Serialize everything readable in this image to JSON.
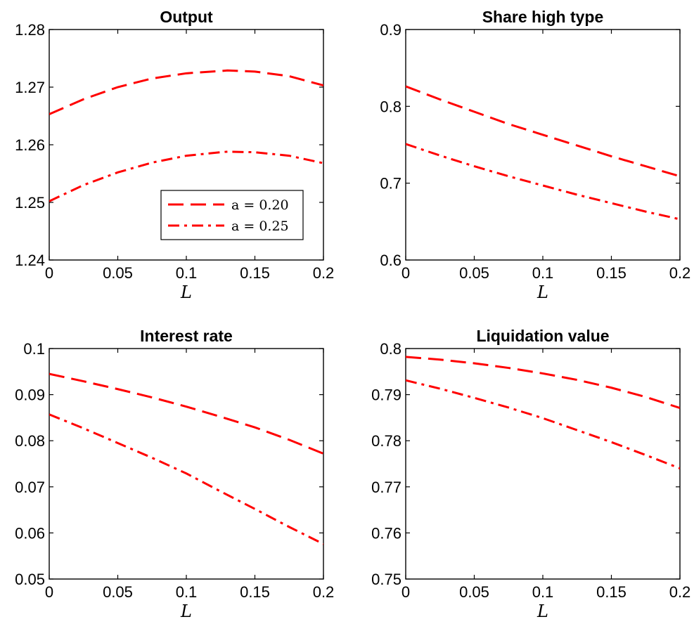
{
  "chart_data": [
    {
      "type": "line",
      "title": "Output",
      "xlabel": "L",
      "ylabel": "",
      "xlim": [
        0,
        0.2
      ],
      "ylim": [
        1.24,
        1.28
      ],
      "xticks": [
        "0",
        "0.05",
        "0.1",
        "0.15",
        "0.2"
      ],
      "yticks": [
        "1.24",
        "1.25",
        "1.26",
        "1.27",
        "1.28"
      ],
      "x": [
        0,
        0.025,
        0.05,
        0.075,
        0.1,
        0.125,
        0.13,
        0.15,
        0.175,
        0.2
      ],
      "series": [
        {
          "name": "a = 0.20",
          "style": "dashed",
          "values": [
            1.2653,
            1.2679,
            1.27,
            1.2715,
            1.2724,
            1.2728,
            1.2729,
            1.2727,
            1.2719,
            1.2703
          ]
        },
        {
          "name": "a = 0.25",
          "style": "dashdot",
          "values": [
            1.2502,
            1.253,
            1.2552,
            1.2569,
            1.2581,
            1.2587,
            1.2588,
            1.2587,
            1.2581,
            1.2568
          ]
        }
      ],
      "legend": {
        "position": "lower-right",
        "entries": [
          "a = 0.20",
          "a = 0.25"
        ]
      }
    },
    {
      "type": "line",
      "title": "Share high type",
      "xlabel": "L",
      "ylabel": "",
      "xlim": [
        0,
        0.2
      ],
      "ylim": [
        0.6,
        0.9
      ],
      "xticks": [
        "0",
        "0.05",
        "0.1",
        "0.15",
        "0.2"
      ],
      "yticks": [
        "0.6",
        "0.7",
        "0.8",
        "0.9"
      ],
      "x": [
        0,
        0.025,
        0.05,
        0.075,
        0.1,
        0.125,
        0.15,
        0.175,
        0.2
      ],
      "series": [
        {
          "name": "a = 0.20",
          "style": "dashed",
          "values": [
            0.826,
            0.809,
            0.793,
            0.777,
            0.763,
            0.749,
            0.735,
            0.722,
            0.709
          ]
        },
        {
          "name": "a = 0.25",
          "style": "dashdot",
          "values": [
            0.751,
            0.736,
            0.722,
            0.709,
            0.697,
            0.685,
            0.674,
            0.663,
            0.653
          ]
        }
      ]
    },
    {
      "type": "line",
      "title": "Interest rate",
      "xlabel": "L",
      "ylabel": "",
      "xlim": [
        0,
        0.2
      ],
      "ylim": [
        0.05,
        0.1
      ],
      "xticks": [
        "0",
        "0.05",
        "0.1",
        "0.15",
        "0.2"
      ],
      "yticks": [
        "0.05",
        "0.06",
        "0.07",
        "0.08",
        "0.09",
        "0.1"
      ],
      "x": [
        0,
        0.025,
        0.05,
        0.075,
        0.1,
        0.125,
        0.15,
        0.175,
        0.2
      ],
      "series": [
        {
          "name": "a = 0.20",
          "style": "dashed",
          "values": [
            0.0945,
            0.0929,
            0.0912,
            0.0894,
            0.0874,
            0.0852,
            0.0829,
            0.0802,
            0.0772
          ]
        },
        {
          "name": "a = 0.25",
          "style": "dashdot",
          "values": [
            0.0857,
            0.0827,
            0.0795,
            0.0763,
            0.0729,
            0.069,
            0.0652,
            0.0613,
            0.0576
          ]
        }
      ]
    },
    {
      "type": "line",
      "title": "Liquidation value",
      "xlabel": "L",
      "ylabel": "",
      "xlim": [
        0,
        0.2
      ],
      "ylim": [
        0.75,
        0.8
      ],
      "xticks": [
        "0",
        "0.05",
        "0.1",
        "0.15",
        "0.2"
      ],
      "yticks": [
        "0.75",
        "0.76",
        "0.77",
        "0.78",
        "0.79",
        "0.8"
      ],
      "x": [
        0,
        0.025,
        0.05,
        0.075,
        0.1,
        0.125,
        0.15,
        0.175,
        0.2
      ],
      "series": [
        {
          "name": "a = 0.20",
          "style": "dashed",
          "values": [
            0.7982,
            0.7976,
            0.7968,
            0.7958,
            0.7946,
            0.7932,
            0.7915,
            0.7895,
            0.7871
          ]
        },
        {
          "name": "a = 0.25",
          "style": "dashdot",
          "values": [
            0.7931,
            0.7913,
            0.7893,
            0.7872,
            0.7849,
            0.7823,
            0.7797,
            0.7769,
            0.774
          ]
        }
      ]
    }
  ],
  "colors": {
    "line": "#ff0000",
    "axes": "#000000",
    "background": "#ffffff"
  }
}
